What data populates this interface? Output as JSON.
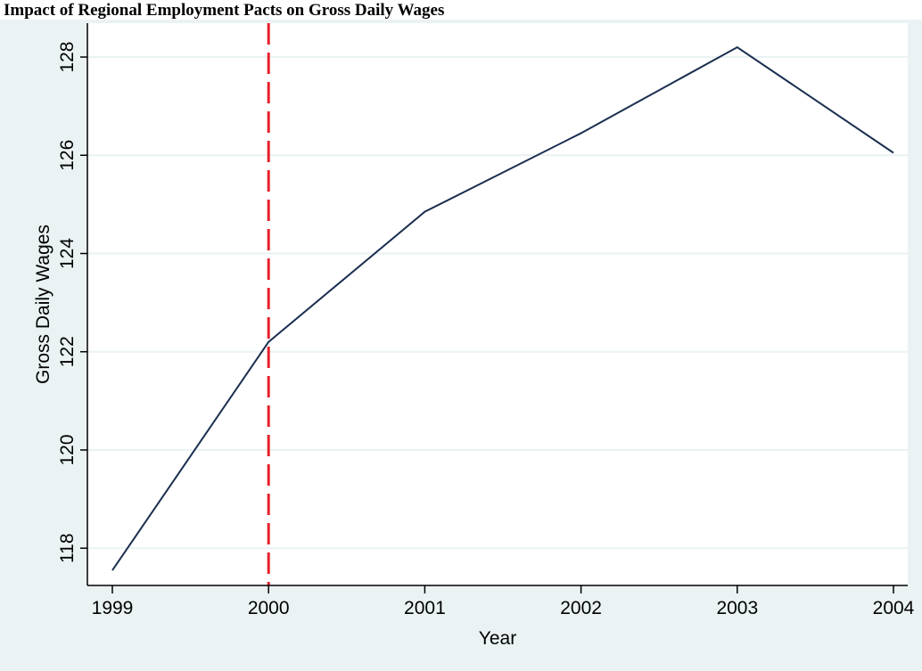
{
  "caption": "Impact of Regional Employment Pacts on Gross Daily Wages",
  "chart_data": {
    "type": "line",
    "title": "",
    "xlabel": "Year",
    "ylabel": "Gross Daily Wages",
    "x": [
      1999,
      2000,
      2001,
      2002,
      2003,
      2004
    ],
    "xticks": [
      "1999",
      "2000",
      "2001",
      "2002",
      "2003",
      "2004"
    ],
    "yticks": [
      "118",
      "120",
      "122",
      "124",
      "126",
      "128"
    ],
    "xlim": [
      1999,
      2004
    ],
    "ylim": [
      117.3,
      128.4
    ],
    "grid": true,
    "series": [
      {
        "values": [
          117.55,
          122.2,
          124.85,
          126.45,
          128.2,
          126.05
        ],
        "color": "#1a2e4f"
      }
    ],
    "reference_line": {
      "x": 2000,
      "style": "dashed",
      "color": "#e8202a"
    },
    "colors": {
      "outer_background": "#eaf2f3",
      "plot_background": "#ffffff",
      "grid": "#eaf2f3",
      "axis": "#000000"
    }
  }
}
